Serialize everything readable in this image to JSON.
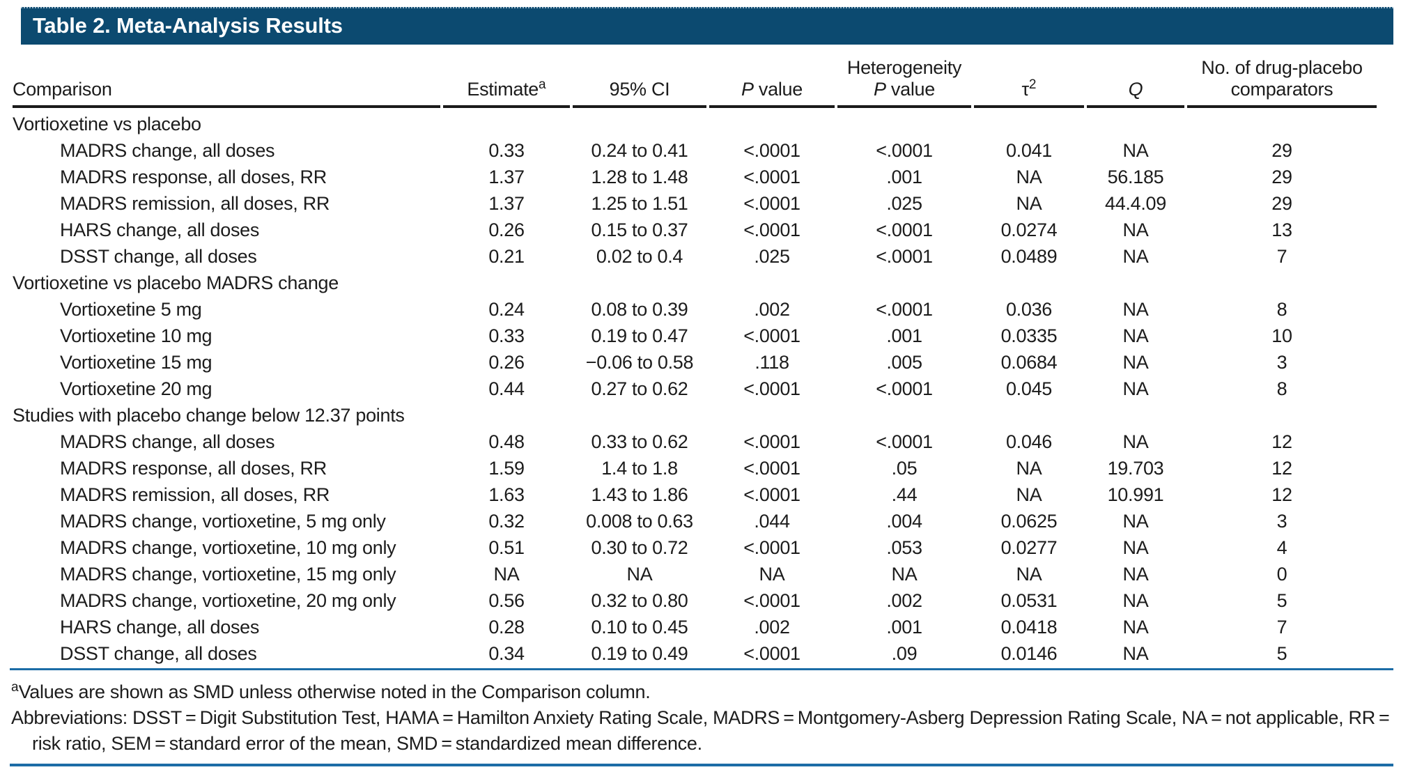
{
  "title": "Table 2. Meta-Analysis Results",
  "columns": {
    "comparison": "Comparison",
    "estimate": "Estimate",
    "estimate_sup": "a",
    "ci": "95% CI",
    "p_italic": "P",
    "p_rest": " value",
    "het_line1": "Heterogeneity",
    "het_p_italic": "P",
    "het_p_rest": " value",
    "tau": "τ",
    "tau_sup": "2",
    "q": "Q",
    "comparators_line1": "No. of drug-placebo",
    "comparators_line2": "comparators"
  },
  "sections": [
    {
      "header": "Vortioxetine vs placebo",
      "rows": [
        [
          "MADRS change, all doses",
          "0.33",
          "0.24 to 0.41",
          "<.0001",
          "<.0001",
          "0.041",
          "NA",
          "29"
        ],
        [
          "MADRS response, all doses, RR",
          "1.37",
          "1.28 to 1.48",
          "<.0001",
          ".001",
          "NA",
          "56.185",
          "29"
        ],
        [
          "MADRS remission, all doses, RR",
          "1.37",
          "1.25 to 1.51",
          "<.0001",
          ".025",
          "NA",
          "44.4.09",
          "29"
        ],
        [
          "HARS change, all doses",
          "0.26",
          "0.15 to 0.37",
          "<.0001",
          "<.0001",
          "0.0274",
          "NA",
          "13"
        ],
        [
          "DSST change, all doses",
          "0.21",
          "0.02 to 0.4",
          ".025",
          "<.0001",
          "0.0489",
          "NA",
          "7"
        ]
      ]
    },
    {
      "header": "Vortioxetine vs placebo MADRS change",
      "rows": [
        [
          "Vortioxetine 5 mg",
          "0.24",
          "0.08 to 0.39",
          ".002",
          "<.0001",
          "0.036",
          "NA",
          "8"
        ],
        [
          "Vortioxetine 10 mg",
          "0.33",
          "0.19 to 0.47",
          "<.0001",
          ".001",
          "0.0335",
          "NA",
          "10"
        ],
        [
          "Vortioxetine 15 mg",
          "0.26",
          "−0.06 to 0.58",
          ".118",
          ".005",
          "0.0684",
          "NA",
          "3"
        ],
        [
          "Vortioxetine 20 mg",
          "0.44",
          "0.27 to 0.62",
          "<.0001",
          "<.0001",
          "0.045",
          "NA",
          "8"
        ]
      ]
    },
    {
      "header": "Studies with placebo change below 12.37 points",
      "rows": [
        [
          "MADRS change, all doses",
          "0.48",
          "0.33 to 0.62",
          "<.0001",
          "<.0001",
          "0.046",
          "NA",
          "12"
        ],
        [
          "MADRS response, all doses, RR",
          "1.59",
          "1.4 to 1.8",
          "<.0001",
          ".05",
          "NA",
          "19.703",
          "12"
        ],
        [
          "MADRS remission, all doses, RR",
          "1.63",
          "1.43 to 1.86",
          "<.0001",
          ".44",
          "NA",
          "10.991",
          "12"
        ],
        [
          "MADRS change, vortioxetine, 5 mg only",
          "0.32",
          "0.008 to 0.63",
          ".044",
          ".004",
          "0.0625",
          "NA",
          "3"
        ],
        [
          "MADRS change, vortioxetine, 10 mg only",
          "0.51",
          "0.30 to 0.72",
          "<.0001",
          ".053",
          "0.0277",
          "NA",
          "4"
        ],
        [
          "MADRS change, vortioxetine, 15 mg only",
          "NA",
          "NA",
          "NA",
          "NA",
          "NA",
          "NA",
          "0"
        ],
        [
          "MADRS change, vortioxetine, 20 mg only",
          "0.56",
          "0.32 to 0.80",
          "<.0001",
          ".002",
          "0.0531",
          "NA",
          "5"
        ],
        [
          "HARS change, all doses",
          "0.28",
          "0.10 to 0.45",
          ".002",
          ".001",
          "0.0418",
          "NA",
          "7"
        ],
        [
          "DSST change, all doses",
          "0.34",
          "0.19 to 0.49",
          "<.0001",
          ".09",
          "0.0146",
          "NA",
          "5"
        ]
      ]
    }
  ],
  "footnotes": {
    "a_sup": "a",
    "a_text": "Values are shown as SMD unless otherwise noted in the Comparison column.",
    "abbreviations": "Abbreviations: DSST = Digit Substitution Test, HAMA = Hamilton Anxiety Rating Scale, MADRS = Montgomery-Asberg Depression Rating Scale, NA = not applicable, RR = risk ratio, SEM = standard error of the mean, SMD = standardized mean difference."
  },
  "colors": {
    "header_bar": "#0c4a70",
    "rule_blue": "#1c6ca6",
    "header_underline": "#1a1a1a",
    "text": "#1c1c1c"
  }
}
